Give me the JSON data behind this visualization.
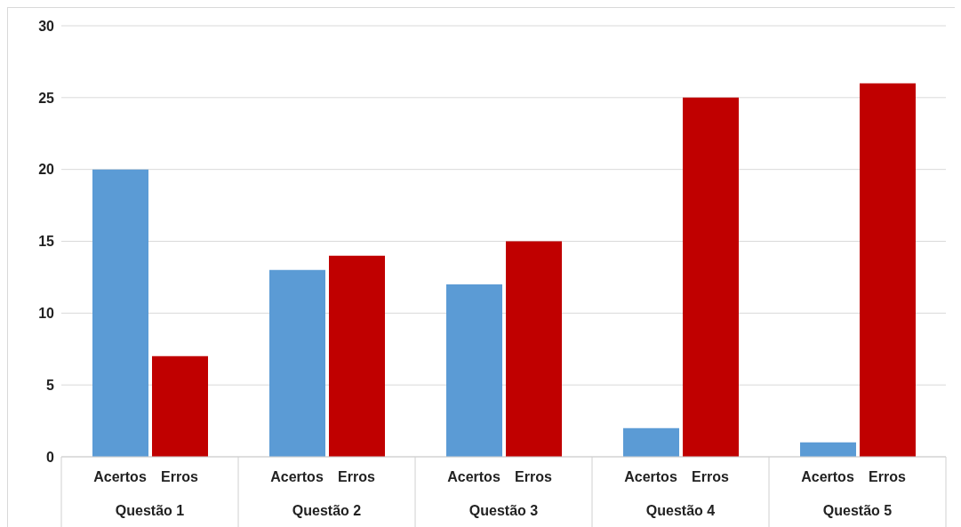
{
  "chart_data": {
    "type": "bar",
    "categories": [
      "Questão 1",
      "Questão 2",
      "Questão 3",
      "Questão 4",
      "Questão 5"
    ],
    "series": [
      {
        "name": "Acertos",
        "color": "#5b9bd5",
        "values": [
          20,
          13,
          12,
          2,
          1
        ]
      },
      {
        "name": "Erros",
        "color": "#c00000",
        "values": [
          7,
          14,
          15,
          25,
          26
        ]
      }
    ],
    "ylim": [
      0,
      30
    ],
    "yticks": [
      0,
      5,
      10,
      15,
      20,
      25,
      30
    ],
    "grid": "y"
  }
}
